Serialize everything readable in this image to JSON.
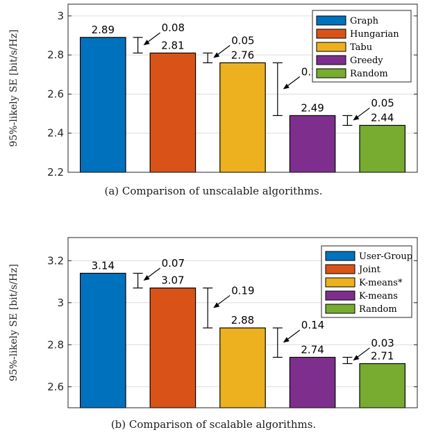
{
  "chart_data": [
    {
      "type": "bar",
      "caption": "(a) Comparison of unscalable algorithms.",
      "ylabel": "95%-likely SE [bit/s/Hz]",
      "ylim": [
        2.2,
        3.06
      ],
      "yticks": [
        2.2,
        2.4,
        2.6,
        2.8,
        3
      ],
      "ytick_labels": [
        "2.2",
        "2.4",
        "2.6",
        "2.8",
        "3"
      ],
      "grid": true,
      "legend_position": "top-right",
      "categories": [
        "Graph",
        "Hungarian",
        "Tabu",
        "Greedy",
        "Random"
      ],
      "values": [
        2.89,
        2.81,
        2.76,
        2.49,
        2.44
      ],
      "value_labels": [
        "2.89",
        "2.81",
        "2.76",
        "2.49",
        "2.44"
      ],
      "colors": [
        "#0072bd",
        "#d95319",
        "#edb120",
        "#7e2f8e",
        "#77ac30"
      ],
      "gaps": [
        {
          "from": 0,
          "to": 1,
          "label": "0.08"
        },
        {
          "from": 1,
          "to": 2,
          "label": "0.05"
        },
        {
          "from": 2,
          "to": 3,
          "label": "0.27"
        },
        {
          "from": 3,
          "to": 4,
          "label": "0.05"
        }
      ]
    },
    {
      "type": "bar",
      "caption": "(b) Comparison of scalable algorithms.",
      "ylabel": "95%-likely SE [bit/s/Hz]",
      "ylim": [
        2.5,
        3.31
      ],
      "yticks": [
        2.6,
        2.8,
        3.0,
        3.2
      ],
      "ytick_labels": [
        "2.6",
        "2.8",
        "3",
        "3.2"
      ],
      "grid": true,
      "legend_position": "top-right",
      "categories": [
        "User-Group",
        "Joint",
        "K-means*",
        "K-means",
        "Random"
      ],
      "values": [
        3.14,
        3.07,
        2.88,
        2.74,
        2.71
      ],
      "value_labels": [
        "3.14",
        "3.07",
        "2.88",
        "2.74",
        "2.71"
      ],
      "colors": [
        "#0072bd",
        "#d95319",
        "#edb120",
        "#7e2f8e",
        "#77ac30"
      ],
      "gaps": [
        {
          "from": 0,
          "to": 1,
          "label": "0.07"
        },
        {
          "from": 1,
          "to": 2,
          "label": "0.19"
        },
        {
          "from": 2,
          "to": 3,
          "label": "0.14"
        },
        {
          "from": 3,
          "to": 4,
          "label": "0.03"
        }
      ]
    }
  ]
}
